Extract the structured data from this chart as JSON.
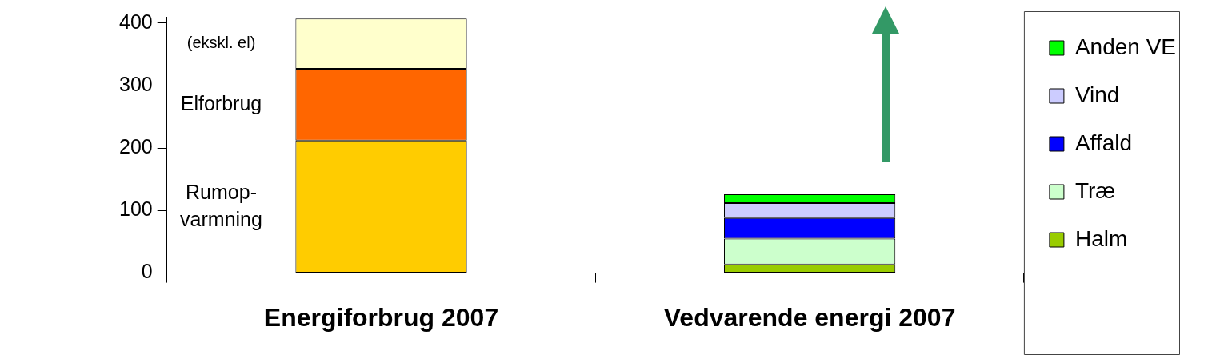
{
  "chart_data": {
    "type": "bar",
    "stacked": true,
    "categories": [
      "Energiforbrug 2007",
      "Vedvarende energi 2007"
    ],
    "ylim": [
      0,
      410
    ],
    "yticks": [
      0,
      100,
      200,
      300,
      400
    ],
    "grid": false,
    "legend": "top right",
    "series": [
      {
        "name": "Rumop-varmning",
        "color": "#ffcc00",
        "values": [
          212,
          null
        ]
      },
      {
        "name": "Elforbrug",
        "color": "#ff6600",
        "values": [
          115,
          null
        ]
      },
      {
        "name": "(ekskl. el)",
        "color": "#ffffcc",
        "values": [
          80,
          null
        ]
      },
      {
        "name": "Halm",
        "color": "#99cc00",
        "values": [
          null,
          14
        ]
      },
      {
        "name": "Træ",
        "color": "#ccffcc",
        "values": [
          null,
          41
        ]
      },
      {
        "name": "Affald",
        "color": "#0000ff",
        "values": [
          null,
          33
        ]
      },
      {
        "name": "Vind",
        "color": "#ccccff",
        "values": [
          null,
          24
        ]
      },
      {
        "name": "Anden VE",
        "color": "#00ff00",
        "values": [
          null,
          14
        ]
      }
    ]
  }
}
